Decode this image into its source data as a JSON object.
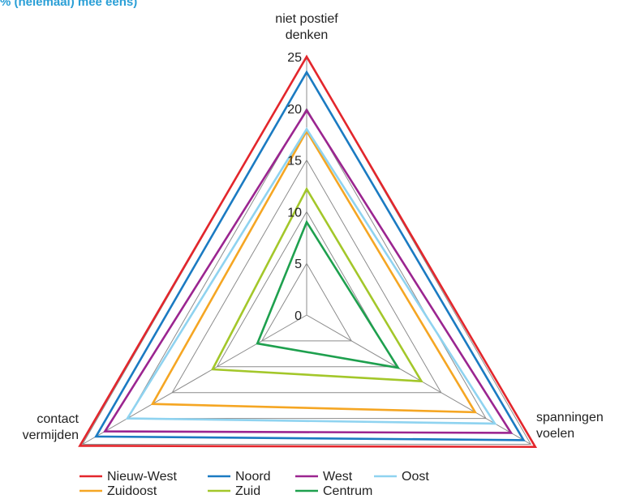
{
  "title": "% (helemaal) mee eens)",
  "colors": {
    "title": "#2a9fd6",
    "grid": "#8c8c8c"
  },
  "chart_data": {
    "type": "radar",
    "axes": [
      "niet postief denken",
      "spanningen voelen",
      "contact vermijden"
    ],
    "axis_label_lines": [
      [
        "niet postief",
        "denken"
      ],
      [
        "spanningen",
        "voelen"
      ],
      [
        "contact",
        "vermijden"
      ]
    ],
    "range": [
      0,
      25
    ],
    "ticks": [
      "0",
      "5",
      "10",
      "15",
      "20",
      "25"
    ],
    "tick_values": [
      0,
      5,
      10,
      15,
      20,
      25
    ],
    "grid": true,
    "legend_position": "bottom",
    "series": [
      {
        "name": "Nieuw-West",
        "color": "#e3262c",
        "values": [
          25,
          25.5,
          25.3
        ]
      },
      {
        "name": "Noord",
        "color": "#1b7bc2",
        "values": [
          23.5,
          24.2,
          23.5
        ]
      },
      {
        "name": "West",
        "color": "#9b2590",
        "values": [
          19.8,
          22.8,
          22.5
        ]
      },
      {
        "name": "Oost",
        "color": "#8fd3f0",
        "values": [
          18,
          21,
          20
        ]
      },
      {
        "name": "Zuidoost",
        "color": "#f5a623",
        "values": [
          17.8,
          18.8,
          17.2
        ]
      },
      {
        "name": "Zuid",
        "color": "#a3c72a",
        "values": [
          12.2,
          12.8,
          10.5
        ]
      },
      {
        "name": "Centrum",
        "color": "#1ea04e",
        "values": [
          9,
          10.2,
          5.5
        ]
      }
    ]
  }
}
